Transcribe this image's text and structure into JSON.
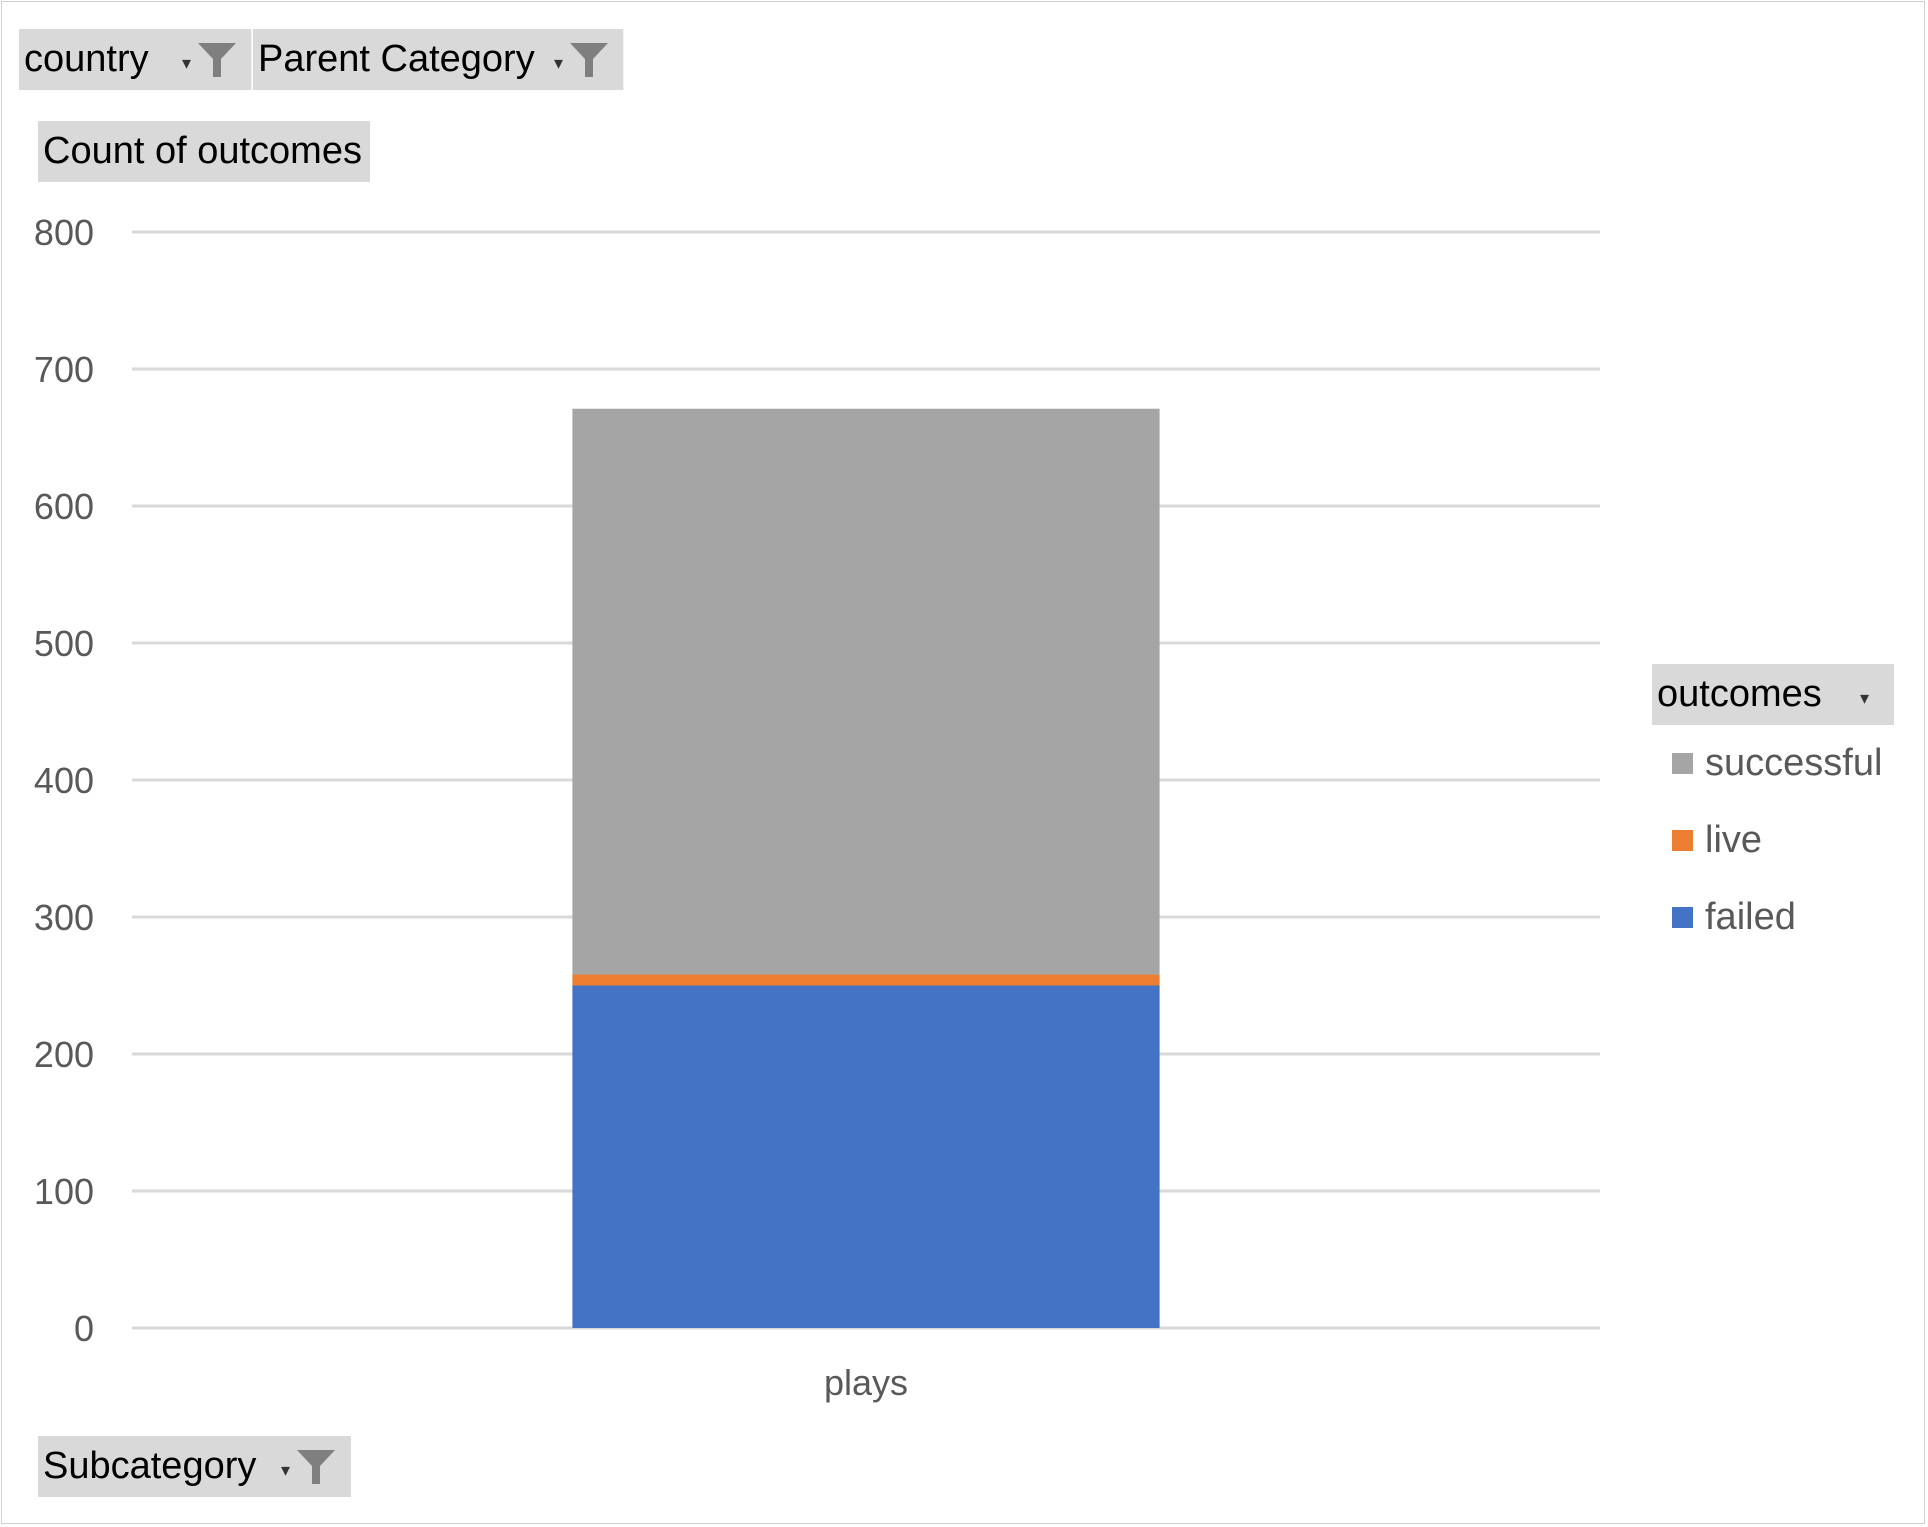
{
  "filters": {
    "country": {
      "label": "country"
    },
    "parent_category": {
      "label": "Parent Category"
    },
    "subcategory": {
      "label": "Subcategory"
    }
  },
  "value_field": {
    "label": "Count of outcomes"
  },
  "legend_field": {
    "label": "outcomes"
  },
  "icons": {
    "filter": "funnel-filter-icon",
    "dropdown": "dropdown-arrow-icon"
  },
  "chart_data": {
    "type": "bar",
    "stacked": true,
    "categories": [
      "plays"
    ],
    "series": [
      {
        "name": "failed",
        "values": [
          250
        ],
        "color": "#4472c4"
      },
      {
        "name": "live",
        "values": [
          8
        ],
        "color": "#ed7d31"
      },
      {
        "name": "successful",
        "values": [
          413
        ],
        "color": "#a5a5a5"
      }
    ],
    "ylim": [
      0,
      800
    ],
    "yticks": [
      0,
      100,
      200,
      300,
      400,
      500,
      600,
      700,
      800
    ],
    "ytick_labels": [
      "0",
      "100",
      "200",
      "300",
      "400",
      "500",
      "600",
      "700",
      "800"
    ],
    "grid": true,
    "legend": {
      "title": "outcomes",
      "position": "right",
      "order": [
        "successful",
        "live",
        "failed"
      ]
    },
    "title": "",
    "xlabel": "",
    "ylabel": ""
  }
}
